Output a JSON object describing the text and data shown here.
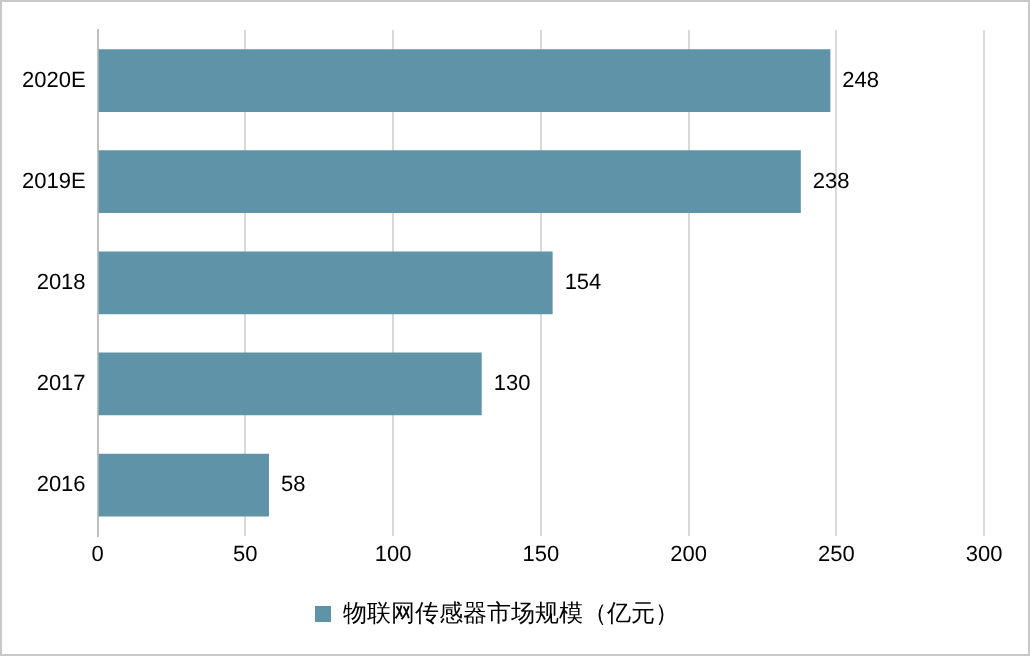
{
  "chart_data": {
    "type": "bar",
    "orientation": "horizontal",
    "categories": [
      "2020E",
      "2019E",
      "2018",
      "2017",
      "2016"
    ],
    "series": [
      {
        "name": "物联网传感器市场规模（亿元）",
        "color": "#5f93a8",
        "values": [
          248,
          238,
          154,
          130,
          58
        ]
      }
    ],
    "xlim": [
      0,
      300
    ],
    "xticks": [
      0,
      50,
      100,
      150,
      200,
      250,
      300
    ],
    "grid": "x",
    "legend": "bottom",
    "data_labels": true
  }
}
